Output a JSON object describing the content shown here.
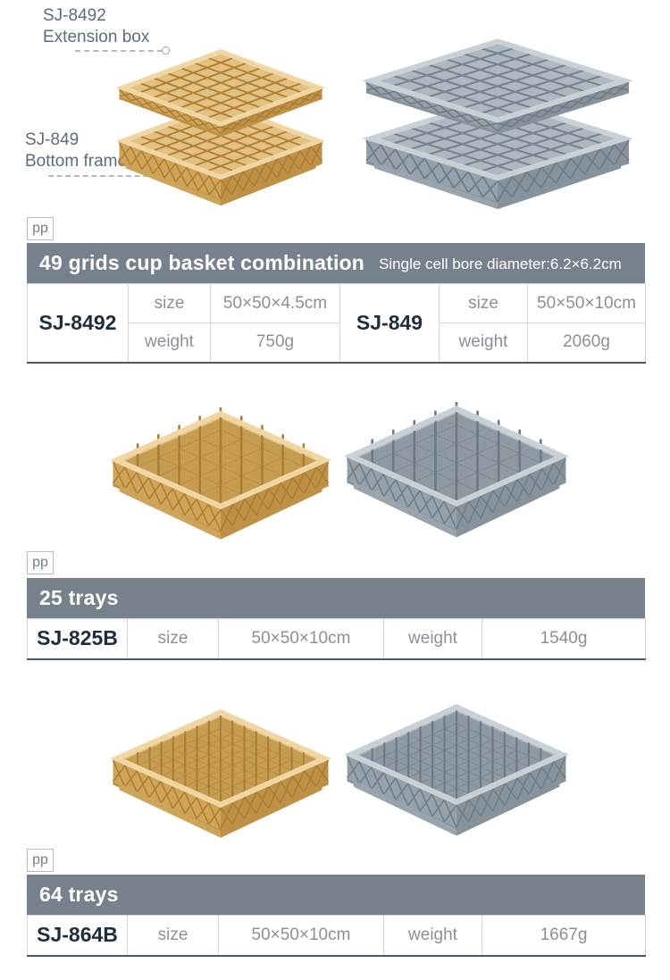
{
  "annotations": [
    {
      "model": "SJ-8492",
      "label": "Extension box"
    },
    {
      "model": "SJ-849",
      "label": "Bottom frame"
    }
  ],
  "badge_label": "pp",
  "sections": [
    {
      "title": "49 grids cup basket combination",
      "subtitle": "Single cell bore diameter:6.2×6.2cm",
      "table": {
        "rows": [
          {
            "model": "SJ-8492",
            "size_label": "size",
            "size_value": "50×50×4.5cm",
            "weight_label": "weight",
            "weight_value": "750g"
          },
          {
            "model": "SJ-849",
            "size_label": "size",
            "size_value": "50×50×10cm",
            "weight_label": "weight",
            "weight_value": "2060g"
          }
        ]
      }
    },
    {
      "title": "25 trays",
      "subtitle": "",
      "table": {
        "rows": [
          {
            "model": "SJ-825B",
            "size_label": "size",
            "size_value": "50×50×10cm",
            "weight_label": "weight",
            "weight_value": "1540g"
          }
        ]
      }
    },
    {
      "title": "64 trays",
      "subtitle": "",
      "table": {
        "rows": [
          {
            "model": "SJ-864B",
            "size_label": "size",
            "size_value": "50×50×10cm",
            "weight_label": "weight",
            "weight_value": "1667g"
          }
        ]
      }
    }
  ],
  "figures": [
    {
      "name": "49 grids cup basket combination",
      "variants": [
        "yellow",
        "gray"
      ]
    },
    {
      "name": "25 trays rack",
      "variants": [
        "yellow",
        "gray"
      ]
    },
    {
      "name": "64 trays rack",
      "variants": [
        "yellow",
        "gray"
      ]
    }
  ],
  "colors": {
    "header_bar": "#77818c",
    "header_text": "#ffffff",
    "model_text": "#1f2e3c",
    "cell_text": "#8a9095",
    "annotation_text": "#5d6c7a",
    "table_border_outer": "#7b848e",
    "table_border_inner": "#d2d5d9",
    "basket_yellow": "#d0a457",
    "basket_gray": "#96a1aa"
  }
}
